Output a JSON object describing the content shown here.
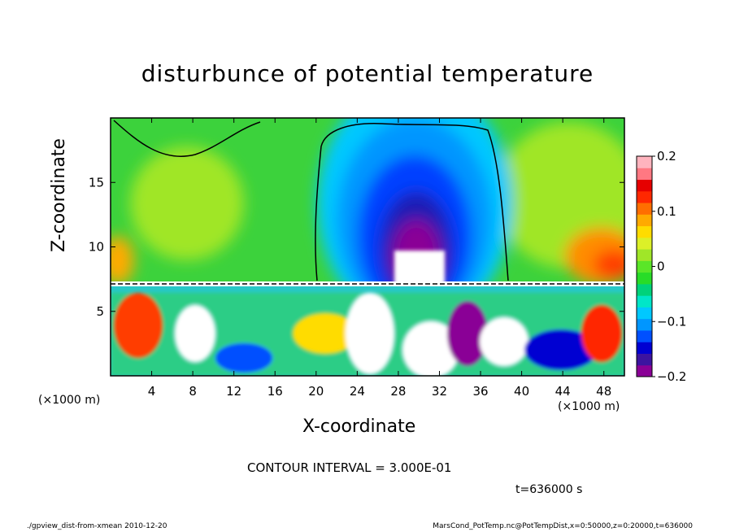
{
  "chart_data": {
    "type": "heatmap",
    "title": "disturbunce of potential temperature",
    "xlabel": "X-coordinate",
    "ylabel": "Z-coordinate",
    "x_unit": "(×1000 m)",
    "y_unit": "(×1000 m)",
    "xlim": [
      0,
      50
    ],
    "ylim": [
      0,
      20
    ],
    "x_ticks": [
      4,
      8,
      12,
      16,
      20,
      24,
      28,
      32,
      36,
      40,
      44,
      48
    ],
    "y_ticks": [
      5,
      10,
      15
    ],
    "colorbar": {
      "range": [
        -0.2,
        0.2
      ],
      "ticks": [
        {
          "value": 0.2,
          "label": "0.2"
        },
        {
          "value": 0.1,
          "label": "0.1"
        },
        {
          "value": 0,
          "label": "0"
        },
        {
          "value": -0.1,
          "label": "−0.1"
        },
        {
          "value": -0.2,
          "label": "−0.2"
        }
      ],
      "colors": [
        "#8a0096",
        "#3c14a0",
        "#0000d2",
        "#0050ff",
        "#0096ff",
        "#00c8ff",
        "#00e6c8",
        "#00d27a",
        "#28dc28",
        "#5ae628",
        "#a0e628",
        "#dcf028",
        "#ffdc00",
        "#ffaa00",
        "#ff6e00",
        "#ff2800",
        "#e60000",
        "#ff7882",
        "#ffb4be"
      ]
    },
    "contour_interval": "CONTOUR INTERVAL = 3.000E-01",
    "annotation_time": "t=636000 s"
  },
  "footer": {
    "left": "./gpview_dist-from-xmean  2010-12-20",
    "right": "MarsCond_PotTemp.nc@PotTempDist,x=0:50000,z=0:20000,t=636000"
  }
}
